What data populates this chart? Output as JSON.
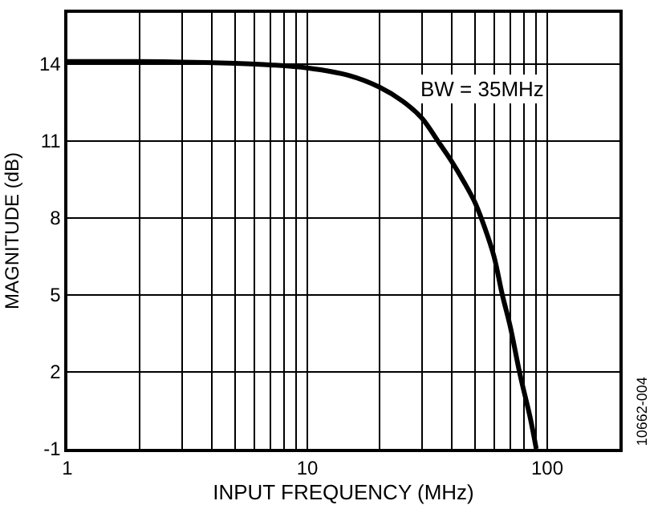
{
  "chart_data": {
    "type": "line",
    "xlabel": "INPUT FREQUENCY (MHz)",
    "ylabel": "MAGNITUDE (dB)",
    "log": "x",
    "grid": true,
    "marker": "none",
    "line_style": "solid",
    "xlim": [
      1,
      200
    ],
    "ylim": [
      -1,
      16
    ],
    "xticks": [
      1,
      {
        "value": 2,
        "label": null
      },
      {
        "value": 3,
        "label": null
      },
      {
        "value": 4,
        "label": null
      },
      {
        "value": 5,
        "label": null
      },
      {
        "value": 6,
        "label": null
      },
      {
        "value": 7,
        "label": null
      },
      {
        "value": 8,
        "label": null
      },
      {
        "value": 9,
        "label": null
      },
      10,
      {
        "value": 20,
        "label": null
      },
      {
        "value": 30,
        "label": null
      },
      {
        "value": 40,
        "label": null
      },
      {
        "value": 50,
        "label": null
      },
      {
        "value": 60,
        "label": null
      },
      {
        "value": 70,
        "label": null
      },
      {
        "value": 80,
        "label": null
      },
      {
        "value": 90,
        "label": null
      },
      100,
      {
        "value": 200,
        "label": null
      }
    ],
    "yticks": [
      -1,
      2,
      5,
      8,
      11,
      14
    ],
    "x": [
      1,
      2,
      3,
      5,
      7,
      10,
      15,
      20,
      25,
      30,
      35,
      40,
      45,
      50,
      55,
      60,
      65,
      70,
      77,
      85,
      90
    ],
    "series": [
      {
        "color": "#000000",
        "values": [
          14.1,
          14.1,
          14.08,
          14.03,
          13.97,
          13.85,
          13.55,
          13.1,
          12.55,
          11.9,
          11.0,
          10.2,
          9.4,
          8.6,
          7.6,
          6.5,
          5.0,
          3.8,
          1.9,
          0.2,
          -1
        ]
      }
    ],
    "annotations": [
      "BW = 35MHz",
      "10662-004"
    ]
  }
}
